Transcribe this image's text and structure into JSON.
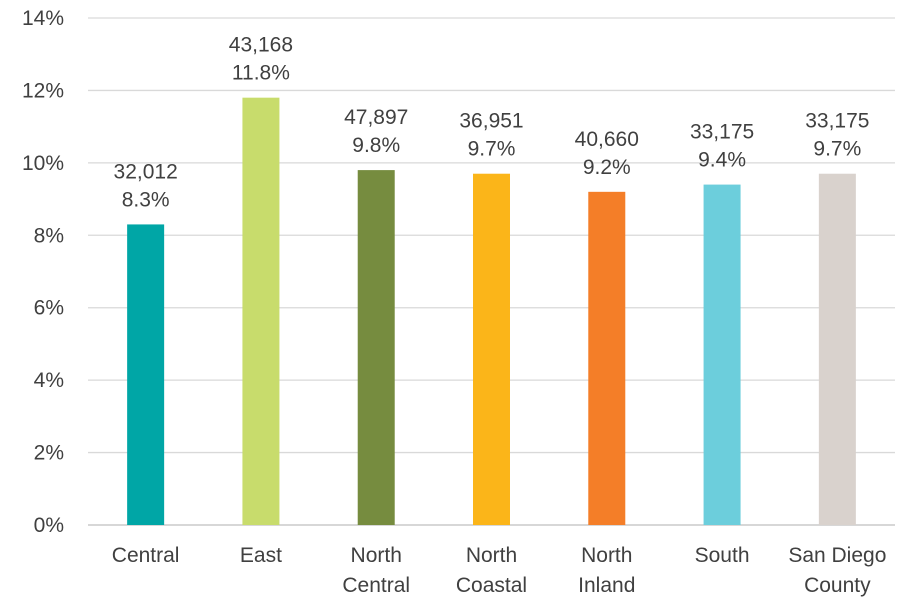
{
  "chart_data": {
    "type": "bar",
    "title": "",
    "xlabel": "",
    "ylabel": "",
    "ylim": [
      0,
      14
    ],
    "yticks": [
      "0%",
      "2%",
      "4%",
      "6%",
      "8%",
      "10%",
      "12%",
      "14%"
    ],
    "grid": true,
    "legend": "none",
    "categories": [
      [
        "Central"
      ],
      [
        "East"
      ],
      [
        "North",
        "Central"
      ],
      [
        "North",
        "Coastal"
      ],
      [
        "North",
        "Inland"
      ],
      [
        "South"
      ],
      [
        "San Diego",
        "County"
      ]
    ],
    "values": [
      8.3,
      11.8,
      9.8,
      9.7,
      9.2,
      9.4,
      9.7
    ],
    "counts": [
      "32,012",
      "43,168",
      "47,897",
      "36,951",
      "40,660",
      "33,175",
      "33,175"
    ],
    "percent_labels": [
      "8.3%",
      "11.8%",
      "9.8%",
      "9.7%",
      "9.2%",
      "9.4%",
      "9.7%"
    ],
    "colors": [
      "#00a6a6",
      "#c8dc6c",
      "#768c3f",
      "#fbb519",
      "#f47e28",
      "#6ccedc",
      "#d9d2cd"
    ]
  }
}
